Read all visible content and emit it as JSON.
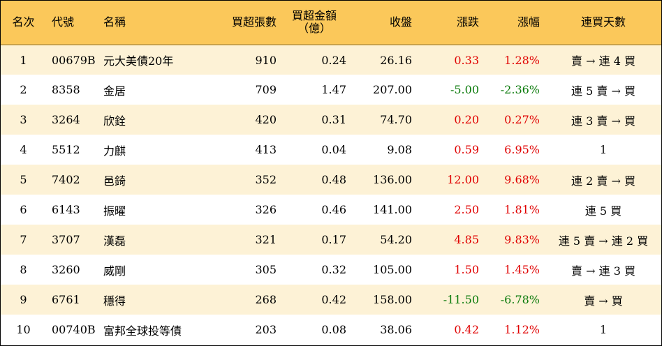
{
  "columns": {
    "rank": "名次",
    "code": "代號",
    "name": "名稱",
    "net_buy_lots": "買超張數",
    "net_buy_amount_line1": "買超金額",
    "net_buy_amount_line2": "（億）",
    "close": "收盤",
    "change": "漲跌",
    "change_pct": "漲幅",
    "streak": "連買天數"
  },
  "colors": {
    "header_bg": "#fbc85a",
    "odd_row_bg": "#fdf2d6",
    "up": "#e00000",
    "down": "#0a7a0a"
  },
  "rows": [
    {
      "rank": "1",
      "code": "00679B",
      "name": "元大美債20年",
      "lots": "910",
      "amount": "0.24",
      "close": "26.16",
      "change": "0.33",
      "pct": "1.28%",
      "dir": "up",
      "streak": "賣 → 連 4 買"
    },
    {
      "rank": "2",
      "code": "8358",
      "name": "金居",
      "lots": "709",
      "amount": "1.47",
      "close": "207.00",
      "change": "-5.00",
      "pct": "-2.36%",
      "dir": "down",
      "streak": "連 5 賣 → 買"
    },
    {
      "rank": "3",
      "code": "3264",
      "name": "欣銓",
      "lots": "420",
      "amount": "0.31",
      "close": "74.70",
      "change": "0.20",
      "pct": "0.27%",
      "dir": "up",
      "streak": "連 3 賣 → 買"
    },
    {
      "rank": "4",
      "code": "5512",
      "name": "力麒",
      "lots": "413",
      "amount": "0.04",
      "close": "9.08",
      "change": "0.59",
      "pct": "6.95%",
      "dir": "up",
      "streak": "1"
    },
    {
      "rank": "5",
      "code": "7402",
      "name": "邑錡",
      "lots": "352",
      "amount": "0.48",
      "close": "136.00",
      "change": "12.00",
      "pct": "9.68%",
      "dir": "up",
      "streak": "連 2 賣 → 買"
    },
    {
      "rank": "6",
      "code": "6143",
      "name": "振曜",
      "lots": "326",
      "amount": "0.46",
      "close": "141.00",
      "change": "2.50",
      "pct": "1.81%",
      "dir": "up",
      "streak": "連 5 買"
    },
    {
      "rank": "7",
      "code": "3707",
      "name": "漢磊",
      "lots": "321",
      "amount": "0.17",
      "close": "54.20",
      "change": "4.85",
      "pct": "9.83%",
      "dir": "up",
      "streak": "連 5 賣 → 連 2 買"
    },
    {
      "rank": "8",
      "code": "3260",
      "name": "威剛",
      "lots": "305",
      "amount": "0.32",
      "close": "105.00",
      "change": "1.50",
      "pct": "1.45%",
      "dir": "up",
      "streak": "賣 → 連 3 買"
    },
    {
      "rank": "9",
      "code": "6761",
      "name": "穩得",
      "lots": "268",
      "amount": "0.42",
      "close": "158.00",
      "change": "-11.50",
      "pct": "-6.78%",
      "dir": "down",
      "streak": "賣 → 買"
    },
    {
      "rank": "10",
      "code": "00740B",
      "name": "富邦全球投等債",
      "lots": "203",
      "amount": "0.08",
      "close": "38.06",
      "change": "0.42",
      "pct": "1.12%",
      "dir": "up",
      "streak": "1"
    }
  ]
}
